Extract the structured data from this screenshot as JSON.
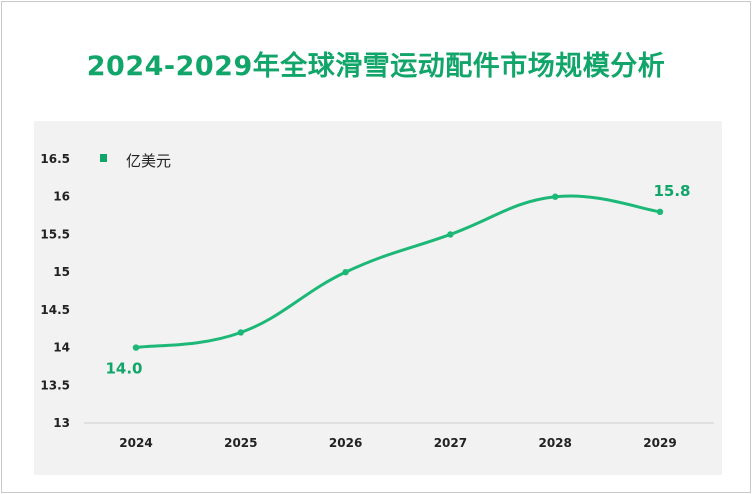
{
  "colors": {
    "accent": "#11a56a",
    "line": "#1db877",
    "plot_bg": "#f2f2f2"
  },
  "chart_data": {
    "type": "line",
    "title": "2024-2029年全球滑雪运动配件市场规模分析",
    "xlabel": "",
    "ylabel": "",
    "categories": [
      "2024",
      "2025",
      "2026",
      "2027",
      "2028",
      "2029"
    ],
    "series": [
      {
        "name": "亿美元",
        "values": [
          14.0,
          14.2,
          15.0,
          15.5,
          16.0,
          15.8
        ]
      }
    ],
    "ylim": [
      13,
      16.5
    ],
    "yticks": [
      "13",
      "13.5",
      "14",
      "14.5",
      "15",
      "15.5",
      "16",
      "16.5"
    ],
    "data_labels": [
      {
        "category": "2024",
        "text": "14.0"
      },
      {
        "category": "2029",
        "text": "15.8"
      }
    ],
    "grid": false,
    "legend_position": "top-left",
    "smooth": true
  }
}
